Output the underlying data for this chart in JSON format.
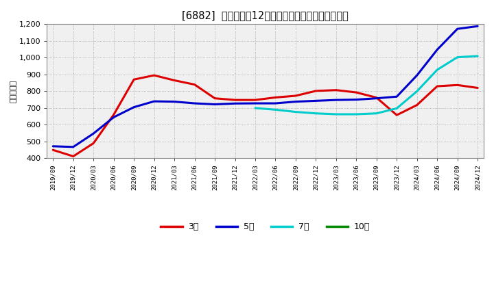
{
  "title": "[6882]  当期純利益12か月移動合計の標準偏差の推移",
  "ylabel": "（百万円）",
  "ylim": [
    400,
    1200
  ],
  "yticks": [
    400,
    500,
    600,
    700,
    800,
    900,
    1000,
    1100,
    1200
  ],
  "plot_bg_color": "#f0f0f0",
  "fig_bg_color": "#ffffff",
  "grid_color": "#999999",
  "series": {
    "3年": {
      "color": "#dd0000",
      "data": [
        [
          "2019/09",
          450
        ],
        [
          "2019/12",
          412
        ],
        [
          "2020/03",
          490
        ],
        [
          "2020/06",
          660
        ],
        [
          "2020/09",
          870
        ],
        [
          "2020/12",
          895
        ],
        [
          "2021/03",
          865
        ],
        [
          "2021/06",
          840
        ],
        [
          "2021/09",
          758
        ],
        [
          "2021/12",
          748
        ],
        [
          "2022/03",
          748
        ],
        [
          "2022/06",
          763
        ],
        [
          "2022/09",
          773
        ],
        [
          "2022/12",
          802
        ],
        [
          "2023/03",
          807
        ],
        [
          "2023/06",
          793
        ],
        [
          "2023/09",
          762
        ],
        [
          "2023/12",
          658
        ],
        [
          "2024/03",
          718
        ],
        [
          "2024/06",
          830
        ],
        [
          "2024/09",
          837
        ],
        [
          "2024/12",
          820
        ]
      ]
    },
    "5年": {
      "color": "#0000cc",
      "data": [
        [
          "2019/09",
          472
        ],
        [
          "2019/12",
          468
        ],
        [
          "2020/03",
          548
        ],
        [
          "2020/06",
          645
        ],
        [
          "2020/09",
          705
        ],
        [
          "2020/12",
          740
        ],
        [
          "2021/03",
          738
        ],
        [
          "2021/06",
          728
        ],
        [
          "2021/09",
          722
        ],
        [
          "2021/12",
          727
        ],
        [
          "2022/03",
          728
        ],
        [
          "2022/06",
          728
        ],
        [
          "2022/09",
          738
        ],
        [
          "2022/12",
          743
        ],
        [
          "2023/03",
          748
        ],
        [
          "2023/06",
          750
        ],
        [
          "2023/09",
          758
        ],
        [
          "2023/12",
          768
        ],
        [
          "2024/03",
          895
        ],
        [
          "2024/06",
          1048
        ],
        [
          "2024/09",
          1172
        ],
        [
          "2024/12",
          1188
        ]
      ]
    },
    "7年": {
      "color": "#00cccc",
      "data": [
        [
          "2022/03",
          700
        ],
        [
          "2022/06",
          690
        ],
        [
          "2022/09",
          677
        ],
        [
          "2022/12",
          668
        ],
        [
          "2023/03",
          663
        ],
        [
          "2023/06",
          663
        ],
        [
          "2023/09",
          668
        ],
        [
          "2023/12",
          698
        ],
        [
          "2024/03",
          800
        ],
        [
          "2024/06",
          928
        ],
        [
          "2024/09",
          1003
        ],
        [
          "2024/12",
          1010
        ]
      ]
    },
    "10年": {
      "color": "#008800",
      "data": []
    }
  },
  "x_tick_labels": [
    "2019/09",
    "2019/12",
    "2020/03",
    "2020/06",
    "2020/09",
    "2020/12",
    "2021/03",
    "2021/06",
    "2021/09",
    "2021/12",
    "2022/03",
    "2022/06",
    "2022/09",
    "2022/12",
    "2023/03",
    "2023/06",
    "2023/09",
    "2023/12",
    "2024/03",
    "2024/06",
    "2024/09",
    "2024/12"
  ],
  "legend_entries": [
    "3年",
    "5年",
    "7年",
    "10年"
  ],
  "legend_colors": [
    "#dd0000",
    "#0000cc",
    "#00cccc",
    "#008800"
  ]
}
